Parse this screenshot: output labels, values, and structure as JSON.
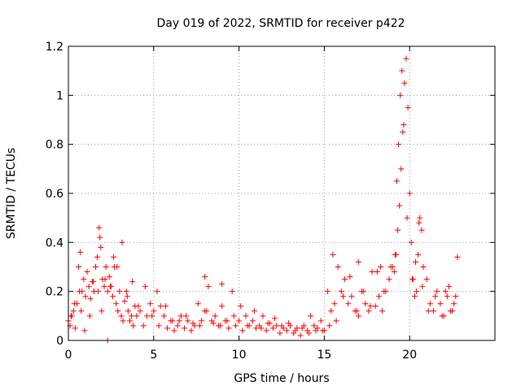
{
  "chart_data": {
    "type": "scatter",
    "title": "Day 019 of 2022, SRMTID for receiver p422",
    "xlabel": "GPS time / hours",
    "ylabel": "SRMTID / TECUs",
    "xlim": [
      0,
      25
    ],
    "ylim": [
      0,
      1.2
    ],
    "xticks": [
      0,
      5,
      10,
      15,
      20
    ],
    "xtick_labels": [
      "0",
      "5",
      "10",
      "15",
      "20"
    ],
    "yticks": [
      0,
      0.2,
      0.4,
      0.6,
      0.8,
      1,
      1.2
    ],
    "ytick_labels": [
      "0",
      "0.2",
      "0.4",
      "0.6",
      "0.8",
      "1",
      "1.2"
    ],
    "grid": true,
    "marker": "+",
    "color": "#ff0000",
    "series": [
      {
        "name": "p422",
        "x": [
          0.0,
          0.1,
          0.2,
          0.3,
          0.4,
          0.5,
          0.6,
          0.7,
          0.8,
          0.9,
          1.0,
          1.1,
          1.2,
          1.3,
          1.4,
          1.5,
          1.6,
          1.7,
          1.8,
          1.85,
          1.9,
          2.0,
          2.1,
          2.2,
          2.3,
          2.4,
          2.5,
          2.6,
          2.7,
          2.8,
          2.9,
          3.0,
          3.1,
          3.2,
          3.3,
          3.4,
          3.5,
          3.6,
          3.7,
          3.8,
          3.9,
          4.0,
          4.2,
          4.4,
          4.6,
          4.8,
          5.0,
          5.2,
          5.4,
          5.6,
          5.8,
          6.0,
          6.2,
          6.4,
          6.6,
          6.8,
          7.0,
          7.2,
          7.4,
          7.6,
          7.8,
          8.0,
          8.2,
          8.4,
          8.6,
          8.8,
          9.0,
          9.2,
          9.4,
          9.6,
          9.8,
          10.0,
          10.2,
          10.4,
          10.6,
          10.8,
          11.0,
          11.2,
          11.4,
          11.6,
          11.8,
          12.0,
          12.2,
          12.4,
          12.6,
          12.8,
          13.0,
          13.2,
          13.4,
          13.6,
          13.8,
          14.0,
          14.2,
          14.4,
          14.6,
          14.8,
          15.0,
          15.2,
          15.4,
          15.6,
          15.8,
          16.0,
          16.2,
          16.4,
          16.6,
          16.8,
          17.0,
          17.2,
          17.4,
          17.6,
          17.8,
          18.0,
          18.2,
          18.4,
          18.6,
          18.8,
          19.0,
          19.1,
          19.2,
          19.3,
          19.4,
          19.5,
          19.6,
          19.7,
          19.8,
          19.9,
          20.0,
          20.1,
          20.2,
          20.3,
          20.4,
          20.5,
          20.6,
          20.7,
          20.8,
          21.0,
          21.2,
          21.4,
          21.6,
          21.8,
          22.0,
          22.2,
          22.4,
          22.6,
          22.8,
          0.15,
          0.35,
          0.65,
          0.75,
          0.95,
          1.25,
          1.45,
          1.75,
          1.95,
          2.15,
          2.45,
          2.65,
          2.85,
          3.15,
          3.45,
          3.75,
          4.1,
          4.5,
          4.9,
          5.3,
          5.7,
          6.1,
          6.5,
          6.9,
          7.3,
          7.7,
          8.1,
          8.5,
          8.9,
          9.3,
          9.7,
          10.1,
          10.5,
          10.9,
          11.3,
          11.7,
          12.1,
          12.5,
          12.9,
          13.3,
          13.7,
          14.1,
          14.5,
          14.9,
          15.3,
          15.7,
          16.1,
          16.5,
          16.9,
          17.3,
          17.7,
          18.1,
          18.5,
          18.9,
          19.15,
          19.25,
          19.35,
          19.45,
          19.55,
          19.65,
          19.85,
          20.15,
          20.35,
          20.55,
          20.75,
          21.1,
          21.5,
          21.9,
          22.1,
          22.3,
          22.5,
          22.7,
          2.3,
          8.0,
          9.0,
          15.5,
          17.0,
          18.3
        ],
        "y": [
          0.08,
          0.06,
          0.1,
          0.12,
          0.05,
          0.15,
          0.3,
          0.36,
          0.2,
          0.25,
          0.18,
          0.28,
          0.22,
          0.17,
          0.24,
          0.2,
          0.3,
          0.34,
          0.46,
          0.42,
          0.38,
          0.25,
          0.22,
          0.3,
          0.2,
          0.26,
          0.22,
          0.18,
          0.3,
          0.15,
          0.12,
          0.2,
          0.1,
          0.08,
          0.16,
          0.2,
          0.12,
          0.08,
          0.1,
          0.06,
          0.14,
          0.1,
          0.12,
          0.06,
          0.1,
          0.15,
          0.12,
          0.2,
          0.14,
          0.1,
          0.05,
          0.08,
          0.04,
          0.06,
          0.1,
          0.05,
          0.08,
          0.04,
          0.06,
          0.15,
          0.08,
          0.12,
          0.22,
          0.08,
          0.1,
          0.06,
          0.14,
          0.08,
          0.05,
          0.2,
          0.06,
          0.08,
          0.04,
          0.1,
          0.06,
          0.08,
          0.05,
          0.06,
          0.1,
          0.04,
          0.07,
          0.05,
          0.06,
          0.03,
          0.05,
          0.04,
          0.06,
          0.03,
          0.05,
          0.02,
          0.06,
          0.04,
          0.1,
          0.06,
          0.05,
          0.08,
          0.04,
          0.2,
          0.12,
          0.15,
          0.3,
          0.2,
          0.25,
          0.15,
          0.18,
          0.12,
          0.1,
          0.2,
          0.15,
          0.12,
          0.28,
          0.14,
          0.18,
          0.12,
          0.2,
          0.25,
          0.3,
          0.28,
          0.35,
          0.45,
          0.55,
          0.7,
          0.85,
          1.05,
          1.15,
          0.95,
          0.6,
          0.4,
          0.25,
          0.18,
          0.2,
          0.35,
          0.5,
          0.45,
          0.3,
          0.25,
          0.15,
          0.12,
          0.2,
          0.15,
          0.1,
          0.18,
          0.12,
          0.15,
          0.34,
          0.1,
          0.15,
          0.2,
          0.12,
          0.04,
          0.1,
          0.24,
          0.2,
          0.12,
          0.25,
          0.22,
          0.34,
          0.3,
          0.4,
          0.18,
          0.24,
          0.14,
          0.22,
          0.1,
          0.06,
          0.14,
          0.08,
          0.08,
          0.1,
          0.07,
          0.06,
          0.12,
          0.07,
          0.06,
          0.08,
          0.1,
          0.14,
          0.06,
          0.12,
          0.05,
          0.07,
          0.09,
          0.06,
          0.07,
          0.04,
          0.05,
          0.03,
          0.04,
          0.04,
          0.06,
          0.08,
          0.18,
          0.26,
          0.12,
          0.2,
          0.14,
          0.28,
          0.2,
          0.3,
          0.35,
          0.65,
          0.8,
          1.0,
          1.1,
          0.88,
          0.5,
          0.25,
          0.32,
          0.48,
          0.22,
          0.12,
          0.18,
          0.1,
          0.2,
          0.22,
          0.12,
          0.18,
          0.0,
          0.26,
          0.23,
          0.35,
          0.32,
          0.3
        ]
      }
    ]
  }
}
